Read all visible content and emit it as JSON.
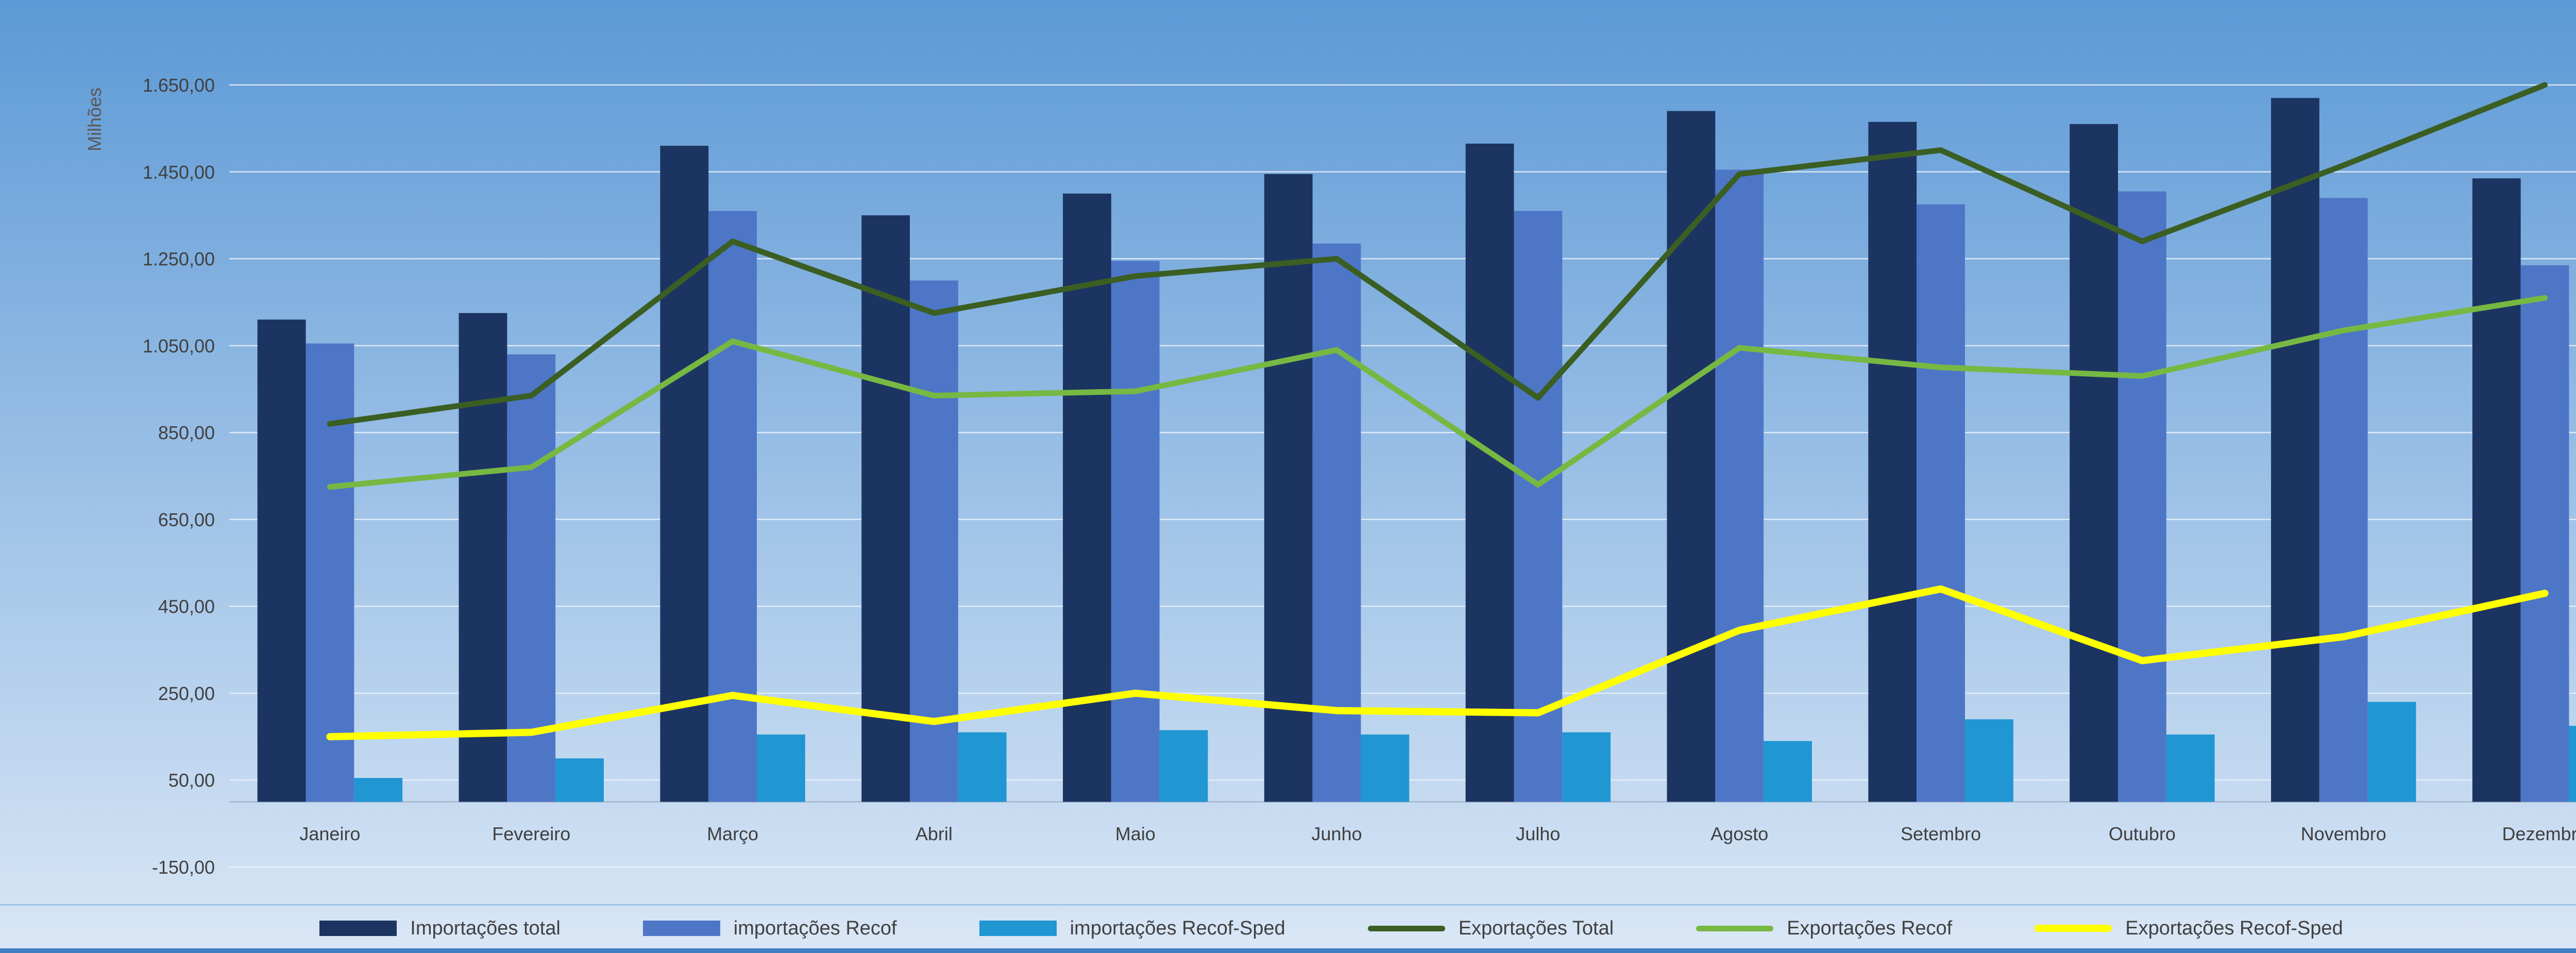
{
  "chart_data": {
    "type": "combo-bar-line",
    "title": "",
    "axis_title_y": "Milhões",
    "categories": [
      "Janeiro",
      "Fevereiro",
      "Março",
      "Abril",
      "Maio",
      "Junho",
      "Julho",
      "Agosto",
      "Setembro",
      "Outubro",
      "Novembro",
      "Dezembro"
    ],
    "y_axis": {
      "min": -150,
      "max": 1650,
      "step": 200,
      "tick_labels": [
        "-150,00",
        "50,00",
        "250,00",
        "450,00",
        "650,00",
        "850,00",
        "1.050,00",
        "1.250,00",
        "1.450,00",
        "1.650,00"
      ]
    },
    "grid": true,
    "legend_position": "bottom",
    "bar_series": [
      {
        "name": "Importações total",
        "color": "#1C3461",
        "values": [
          1110,
          1125,
          1510,
          1350,
          1400,
          1445,
          1515,
          1590,
          1565,
          1560,
          1620,
          1435
        ]
      },
      {
        "name": "importações Recof",
        "color": "#4E76C7",
        "values": [
          1055,
          1030,
          1360,
          1200,
          1245,
          1285,
          1360,
          1455,
          1375,
          1405,
          1390,
          1235
        ]
      },
      {
        "name": "importações Recof-Sped",
        "color": "#2096D3",
        "values": [
          55,
          100,
          155,
          160,
          165,
          155,
          160,
          140,
          190,
          155,
          230,
          175
        ]
      }
    ],
    "line_series": [
      {
        "name": "Exportações Total",
        "color": "#3B5E23",
        "stroke_width": 11,
        "values": [
          870,
          935,
          1290,
          1125,
          1210,
          1250,
          930,
          1445,
          1500,
          1290,
          1465,
          1650
        ]
      },
      {
        "name": "Exportações Recof",
        "color": "#77B843",
        "stroke_width": 11,
        "values": [
          725,
          770,
          1060,
          935,
          945,
          1040,
          730,
          1045,
          1000,
          980,
          1085,
          1160
        ]
      },
      {
        "name": "Exportações Recof-Sped",
        "color": "#FFFF00",
        "stroke_width": 14,
        "values": [
          150,
          160,
          245,
          185,
          250,
          210,
          205,
          395,
          490,
          325,
          380,
          480
        ]
      }
    ]
  },
  "colors": {
    "background_top": "#5C99D6",
    "background_bottom": "#DAE7F6",
    "gridline": "#EAF1F9",
    "axis_line": "#A9BBD1",
    "tick_text": "#404040",
    "axis_title_text": "#595959",
    "legend_text": "#404040",
    "legend_divider": "#9EC4E8",
    "bottom_border": "#3F7FC1"
  }
}
